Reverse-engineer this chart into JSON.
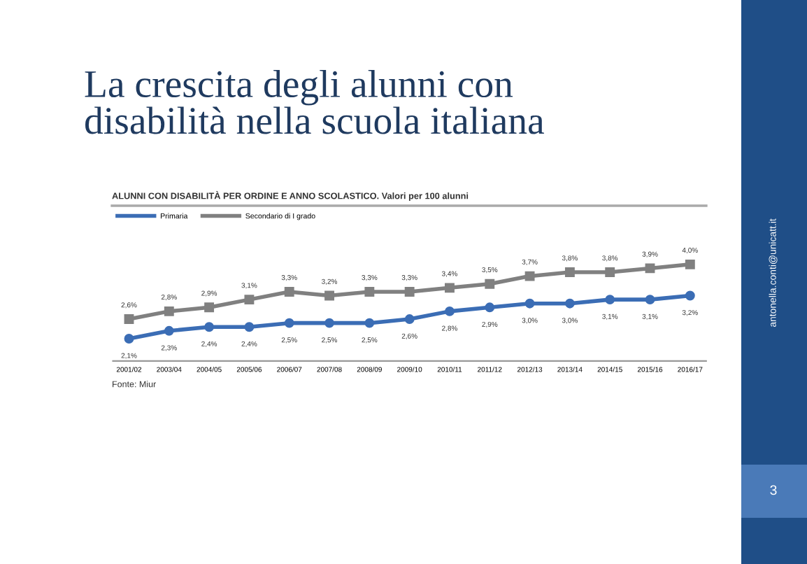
{
  "chart_data": {
    "type": "line",
    "title": "La crescita degli alunni con\ndisabilità nella scuola italiana",
    "subtitle": "ALUNNI CON DISABILITÀ PER ORDINE E ANNO SCOLASTICO. Valori per 100 alunni",
    "annotations": [
      "Fonte: Miur",
      "antonella.conti@unicatt.it",
      "3"
    ],
    "categories": [
      "2001/02",
      "2003/04",
      "2004/05",
      "2005/06",
      "2006/07",
      "2007/08",
      "2008/09",
      "2009/10",
      "2010/11",
      "2011/12",
      "2012/13",
      "2013/14",
      "2014/15",
      "2015/16",
      "2016/17"
    ],
    "series": [
      {
        "name": "Primaria",
        "color": "#3b6db5",
        "marker": "circle",
        "values": [
          2.1,
          2.3,
          2.4,
          2.4,
          2.5,
          2.5,
          2.5,
          2.6,
          2.8,
          2.9,
          3.0,
          3.0,
          3.1,
          3.1,
          3.2
        ],
        "value_labels": [
          "2,1%",
          "2,3%",
          "2,4%",
          "2,4%",
          "2,5%",
          "2,5%",
          "2,5%",
          "2,6%",
          "2,8%",
          "2,9%",
          "3,0%",
          "3,0%",
          "3,1%",
          "3,1%",
          "3,2%"
        ]
      },
      {
        "name": "Secondario di I grado",
        "color": "#808080",
        "marker": "square",
        "values": [
          2.6,
          2.8,
          2.9,
          3.1,
          3.3,
          3.2,
          3.3,
          3.3,
          3.4,
          3.5,
          3.7,
          3.8,
          3.8,
          3.9,
          4.0
        ],
        "value_labels": [
          "2,6%",
          "2,8%",
          "2,9%",
          "3,1%",
          "3,3%",
          "3,2%",
          "3,3%",
          "3,3%",
          "3,4%",
          "3,5%",
          "3,7%",
          "3,8%",
          "3,8%",
          "3,9%",
          "4,0%"
        ]
      }
    ],
    "legend": "top left"
  }
}
